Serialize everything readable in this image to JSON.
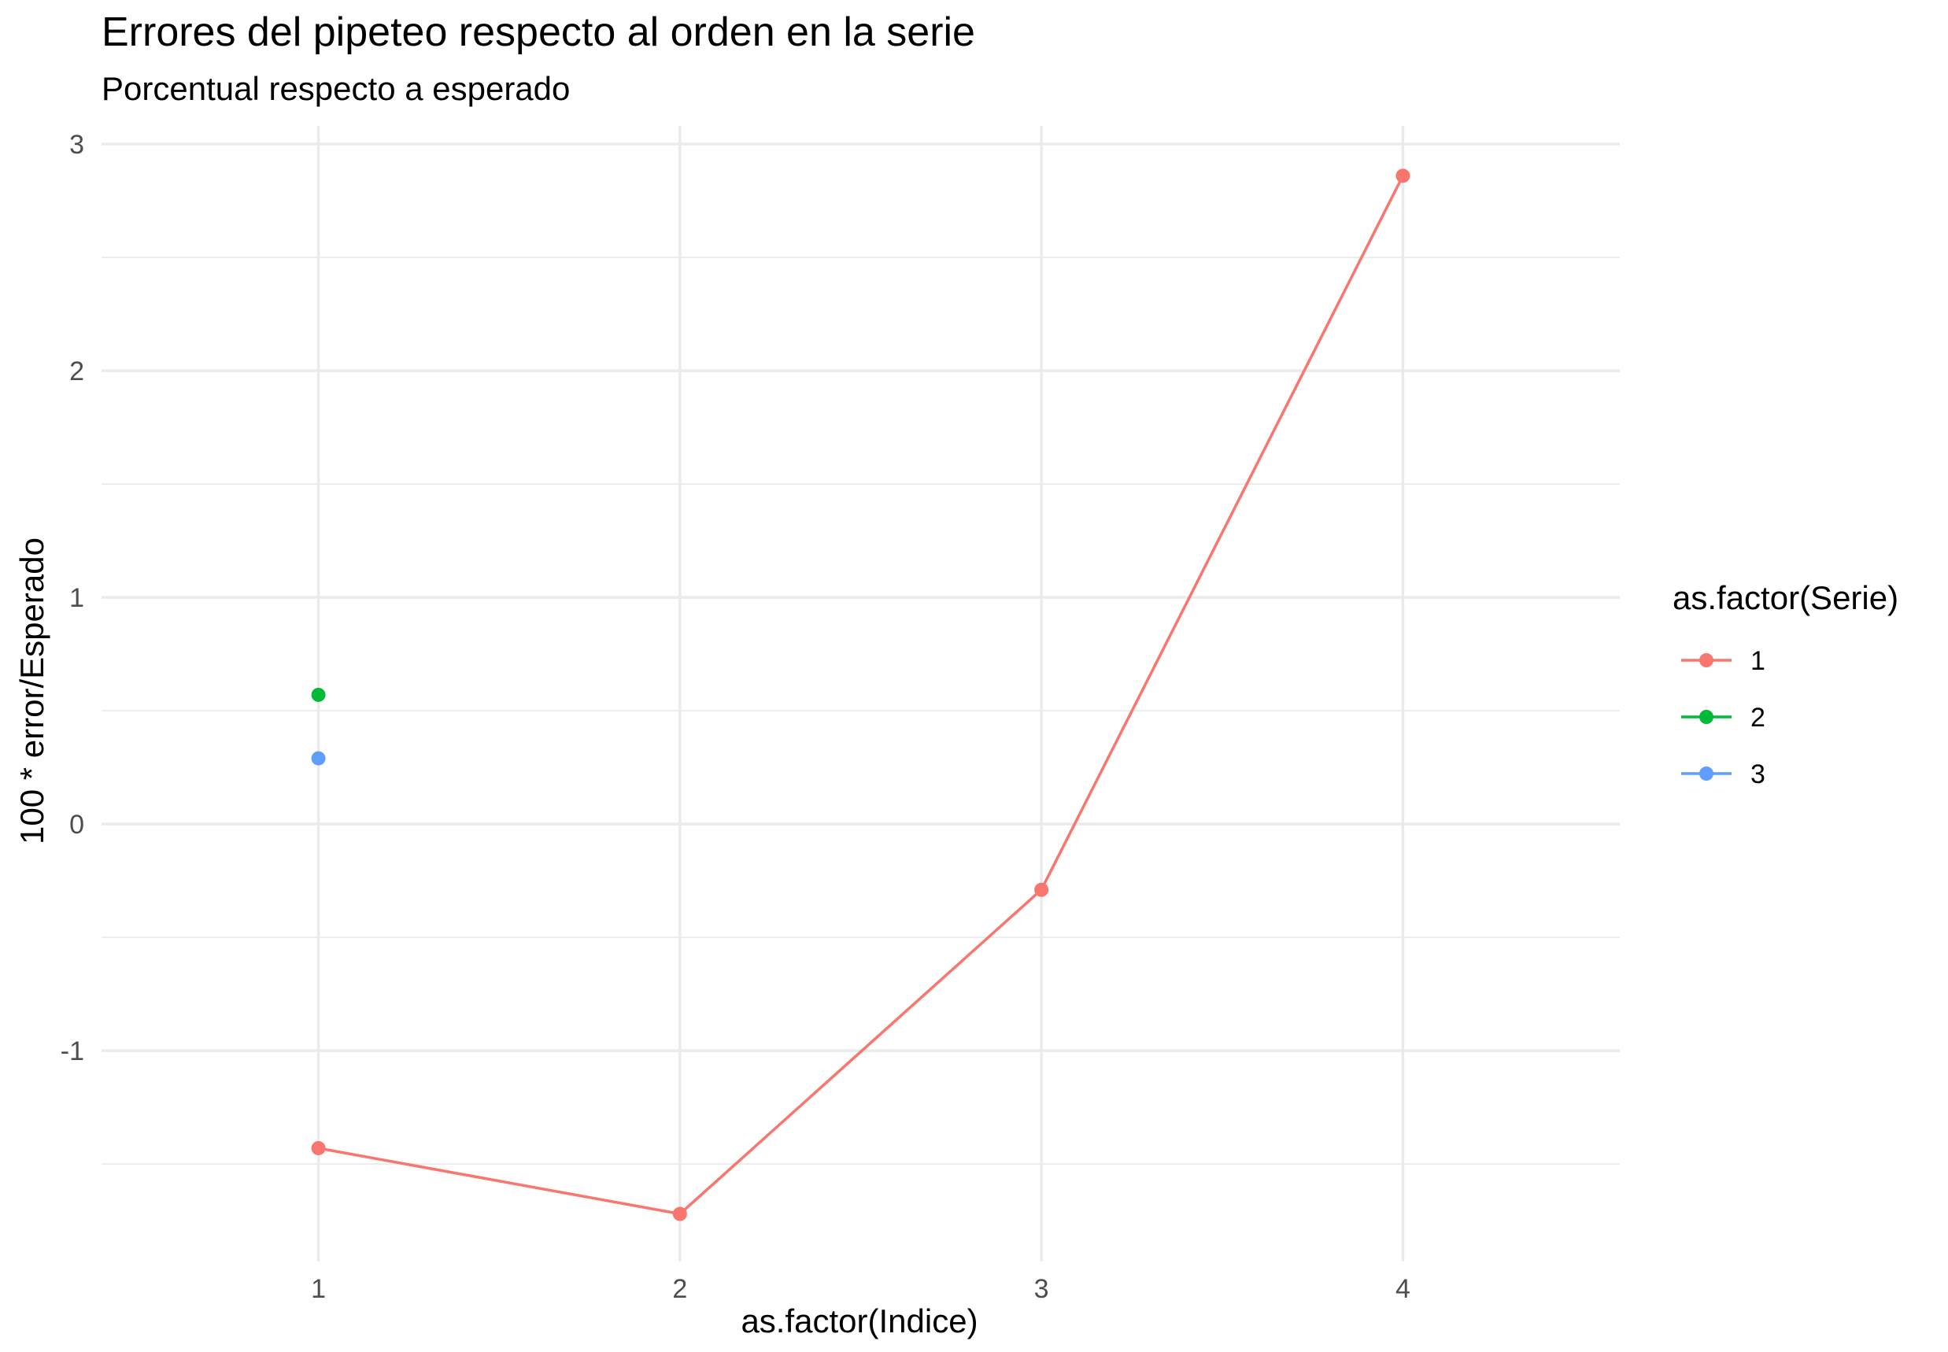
{
  "chart_data": {
    "type": "line",
    "title": "Errores del pipeteo respecto al orden en la serie",
    "subtitle": "Porcentual respecto a esperado",
    "xlabel": "as.factor(Indice)",
    "ylabel": "100 * error/Esperado",
    "categories": [
      "1",
      "2",
      "3",
      "4"
    ],
    "y_ticks": [
      -1,
      0,
      1,
      2,
      3
    ],
    "y_tick_labels": [
      "-1",
      "0",
      "1",
      "2",
      "3"
    ],
    "ylim": [
      -1.93,
      3.08
    ],
    "grid": true,
    "legend": {
      "title": "as.factor(Serie)",
      "position": "right"
    },
    "series": [
      {
        "name": "1",
        "color": "#F8766D",
        "points": [
          {
            "x": "1",
            "y": -1.43
          },
          {
            "x": "2",
            "y": -1.72
          },
          {
            "x": "3",
            "y": -0.29
          },
          {
            "x": "4",
            "y": 2.86
          }
        ]
      },
      {
        "name": "2",
        "color": "#00BA38",
        "points": [
          {
            "x": "1",
            "y": 0.57
          }
        ]
      },
      {
        "name": "3",
        "color": "#619CFF",
        "points": [
          {
            "x": "1",
            "y": 0.29
          }
        ]
      }
    ]
  }
}
